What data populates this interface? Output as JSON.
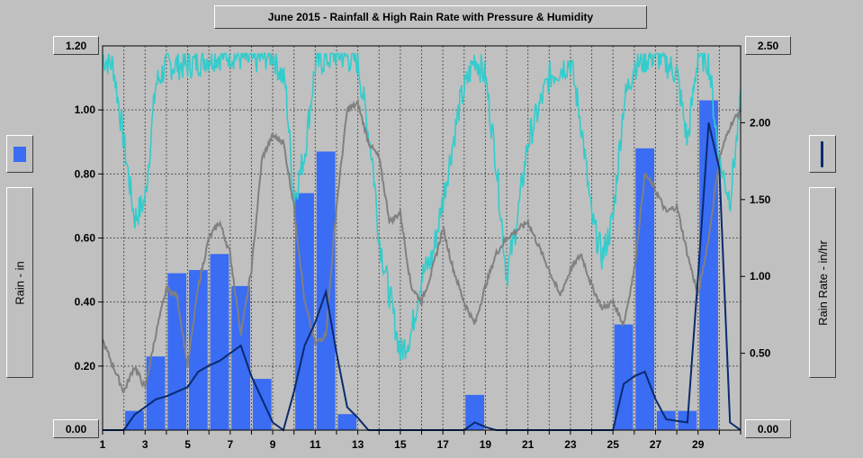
{
  "chart_data": {
    "type": "bar",
    "title": "June 2015 - Rainfall & High Rain Rate with Pressure & Humidity",
    "ylabel_left": "Rain - in",
    "ylabel_right": "Rain Rate - in/hr",
    "ylim_left": [
      0,
      1.2
    ],
    "ylim_right": [
      0,
      2.5
    ],
    "xlim": [
      1,
      31
    ],
    "grid": true,
    "y_ticks_left": [
      "1.20",
      "1.00",
      "0.80",
      "0.60",
      "0.40",
      "0.20",
      "0.00"
    ],
    "y_ticks_right": [
      "2.50",
      "2.00",
      "1.50",
      "1.00",
      "0.50",
      "0.00"
    ],
    "y_left_max_label": "1.20",
    "y_left_min_label": "0.00",
    "y_right_max_label": "2.50",
    "y_right_min_label": "0.00",
    "x_ticks": [
      "1",
      "3",
      "5",
      "7",
      "9",
      "11",
      "13",
      "15",
      "17",
      "19",
      "21",
      "23",
      "25",
      "27",
      "29"
    ],
    "colors": {
      "rain": "#3a6cf4",
      "rain_rate": "#0a2a6e",
      "humidity": "#33cccc",
      "pressure": "#808080",
      "background": "#c0c0c0"
    },
    "series": [
      {
        "type": "bar",
        "axis": "left",
        "x": [
          2.5,
          3.5,
          4.5,
          5.5,
          6.5,
          7.5,
          8.5,
          10.5,
          11.5,
          12.5,
          18.5,
          25.5,
          26.5,
          27.5,
          28.5,
          29.5
        ],
        "values": [
          0.06,
          0.23,
          0.49,
          0.5,
          0.55,
          0.45,
          0.16,
          0.74,
          0.87,
          0.05,
          0.11,
          0.33,
          0.88,
          0.06,
          0.06,
          1.03
        ]
      },
      {
        "type": "line",
        "axis": "right",
        "x": [
          1,
          2,
          2.5,
          3,
          3.5,
          4,
          4.5,
          5,
          5.5,
          6,
          6.5,
          7,
          7.5,
          8,
          8.5,
          9,
          9.5,
          10,
          10.5,
          11,
          11.5,
          12,
          12.5,
          13,
          13.5,
          14,
          18,
          18.5,
          19,
          19.5,
          25,
          25.5,
          26,
          26.5,
          27,
          27.5,
          28,
          28.5,
          29,
          29.5,
          30,
          30.5,
          31
        ],
        "values": [
          0,
          0,
          0.1,
          0.15,
          0.2,
          0.22,
          0.25,
          0.28,
          0.38,
          0.42,
          0.45,
          0.5,
          0.55,
          0.35,
          0.2,
          0.05,
          0,
          0.25,
          0.55,
          0.7,
          0.9,
          0.5,
          0.15,
          0.08,
          0,
          0,
          0,
          0.05,
          0.02,
          0,
          0,
          0.3,
          0.35,
          0.38,
          0.2,
          0.07,
          0.06,
          0.05,
          1.0,
          2.0,
          1.7,
          0.05,
          0
        ]
      }
    ]
  }
}
